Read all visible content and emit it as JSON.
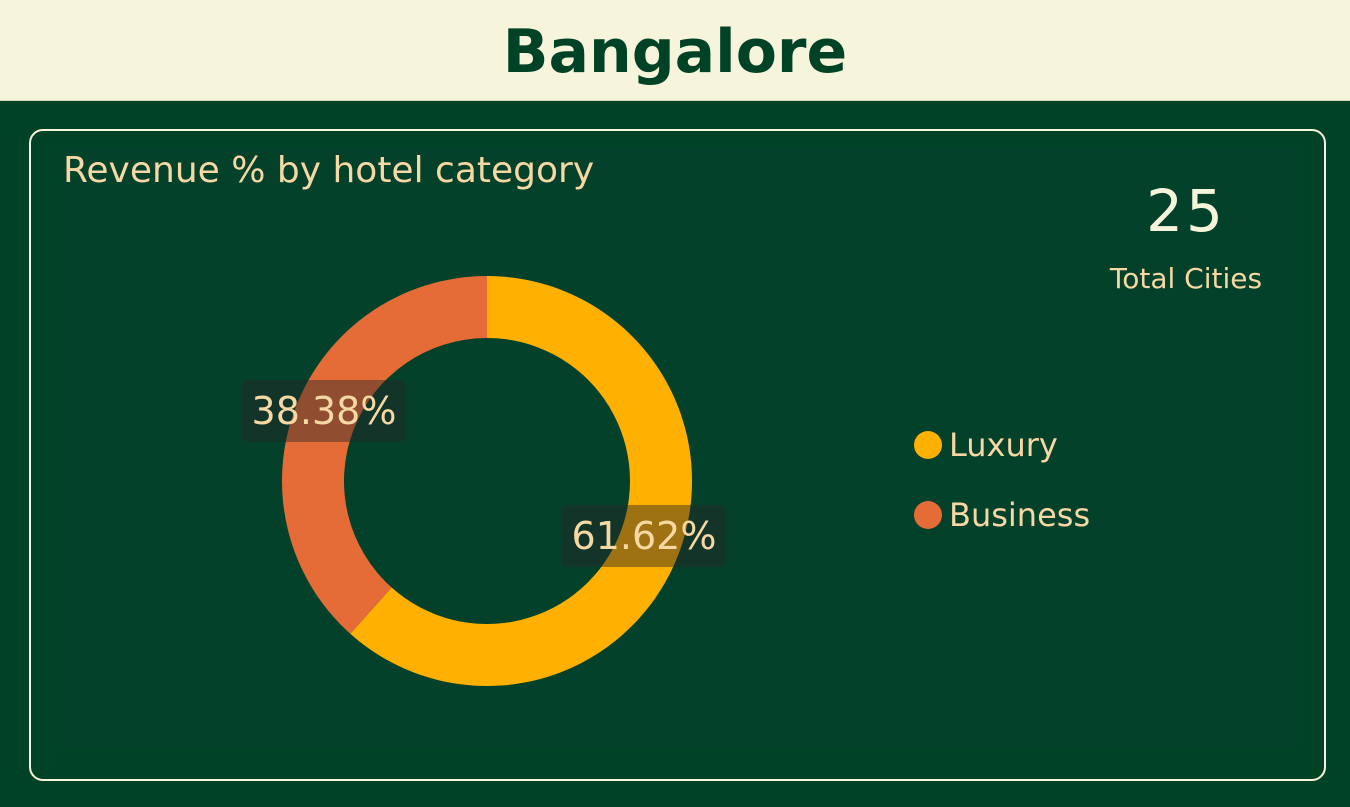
{
  "header": {
    "title": "Bangalore"
  },
  "kpi": {
    "value": "25",
    "label": "Total Cities"
  },
  "colors": {
    "background": "#004225",
    "header_bg": "#f6f5dc",
    "title_text": "#f6d8a4",
    "luxury": "#ffb000",
    "business": "#e66c37"
  },
  "chart_data": {
    "type": "pie",
    "title": "Revenue % by hotel category",
    "donut": true,
    "legend_position": "right",
    "categories": [
      "Luxury",
      "Business"
    ],
    "values": [
      61.62,
      38.38
    ],
    "data_labels": [
      "61.62%",
      "38.38%"
    ],
    "colors": [
      "#ffb000",
      "#e66c37"
    ]
  }
}
